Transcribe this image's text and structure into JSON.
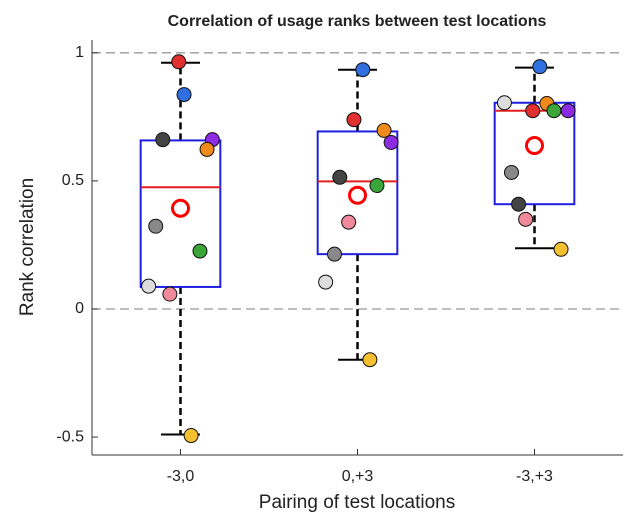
{
  "chart_data": {
    "type": "box",
    "title": "Correlation of usage ranks between test locations",
    "x_label": "Pairing of test locations",
    "y_label": "Rank correlation",
    "categories": [
      "-3,0",
      "0,+3",
      "-3,+3"
    ],
    "xlim": [
      0.5,
      3.5
    ],
    "ylim": [
      -0.57,
      1.05
    ],
    "yticks": [
      -0.5,
      0,
      0.5,
      1
    ],
    "hlines": [
      0,
      1
    ],
    "box_color": "#1f1fe0",
    "median_color": "#e02020",
    "mean_color": "#ff0000",
    "boxes": [
      {
        "q1": 0.086,
        "median": 0.475,
        "q3": 0.658,
        "whisker_low": -0.49,
        "whisker_high": 0.961,
        "mean": 0.393,
        "points": {
          "x": [
            0.99,
            1.02,
            0.9,
            1.18,
            1.15,
            0.86,
            1.11,
            0.82,
            0.94,
            1.06
          ],
          "y": [
            0.965,
            0.837,
            0.661,
            0.661,
            0.623,
            0.323,
            0.226,
            0.089,
            0.058,
            -0.494
          ],
          "colors": [
            "#e03030",
            "#2f6fe0",
            "#444444",
            "#8b2be2",
            "#f08a1a",
            "#888888",
            "#3aa63a",
            "#dddddd",
            "#f08a9a",
            "#f5c030"
          ]
        }
      },
      {
        "q1": 0.214,
        "median": 0.498,
        "q3": 0.693,
        "whisker_low": -0.198,
        "whisker_high": 0.934,
        "mean": 0.444,
        "points": {
          "x": [
            2.03,
            1.98,
            2.15,
            2.19,
            1.9,
            2.11,
            1.95,
            1.87,
            1.82,
            2.07
          ],
          "y": [
            0.934,
            0.739,
            0.697,
            0.65,
            0.514,
            0.482,
            0.339,
            0.214,
            0.105,
            -0.198
          ],
          "colors": [
            "#2f6fe0",
            "#e03030",
            "#f08a1a",
            "#8b2be2",
            "#444444",
            "#3aa63a",
            "#f08a9a",
            "#888888",
            "#dddddd",
            "#f5c030"
          ]
        }
      },
      {
        "q1": 0.409,
        "median": 0.774,
        "q3": 0.805,
        "whisker_low": 0.237,
        "whisker_high": 0.942,
        "mean": 0.638,
        "points": {
          "x": [
            3.03,
            2.83,
            3.07,
            2.99,
            3.11,
            3.19,
            2.87,
            2.91,
            2.95,
            3.15
          ],
          "y": [
            0.946,
            0.805,
            0.802,
            0.774,
            0.774,
            0.774,
            0.533,
            0.409,
            0.35,
            0.233
          ],
          "colors": [
            "#2f6fe0",
            "#dddddd",
            "#f08a1a",
            "#e03030",
            "#3aa63a",
            "#8b2be2",
            "#888888",
            "#444444",
            "#f08a9a",
            "#f5c030"
          ]
        }
      }
    ]
  }
}
